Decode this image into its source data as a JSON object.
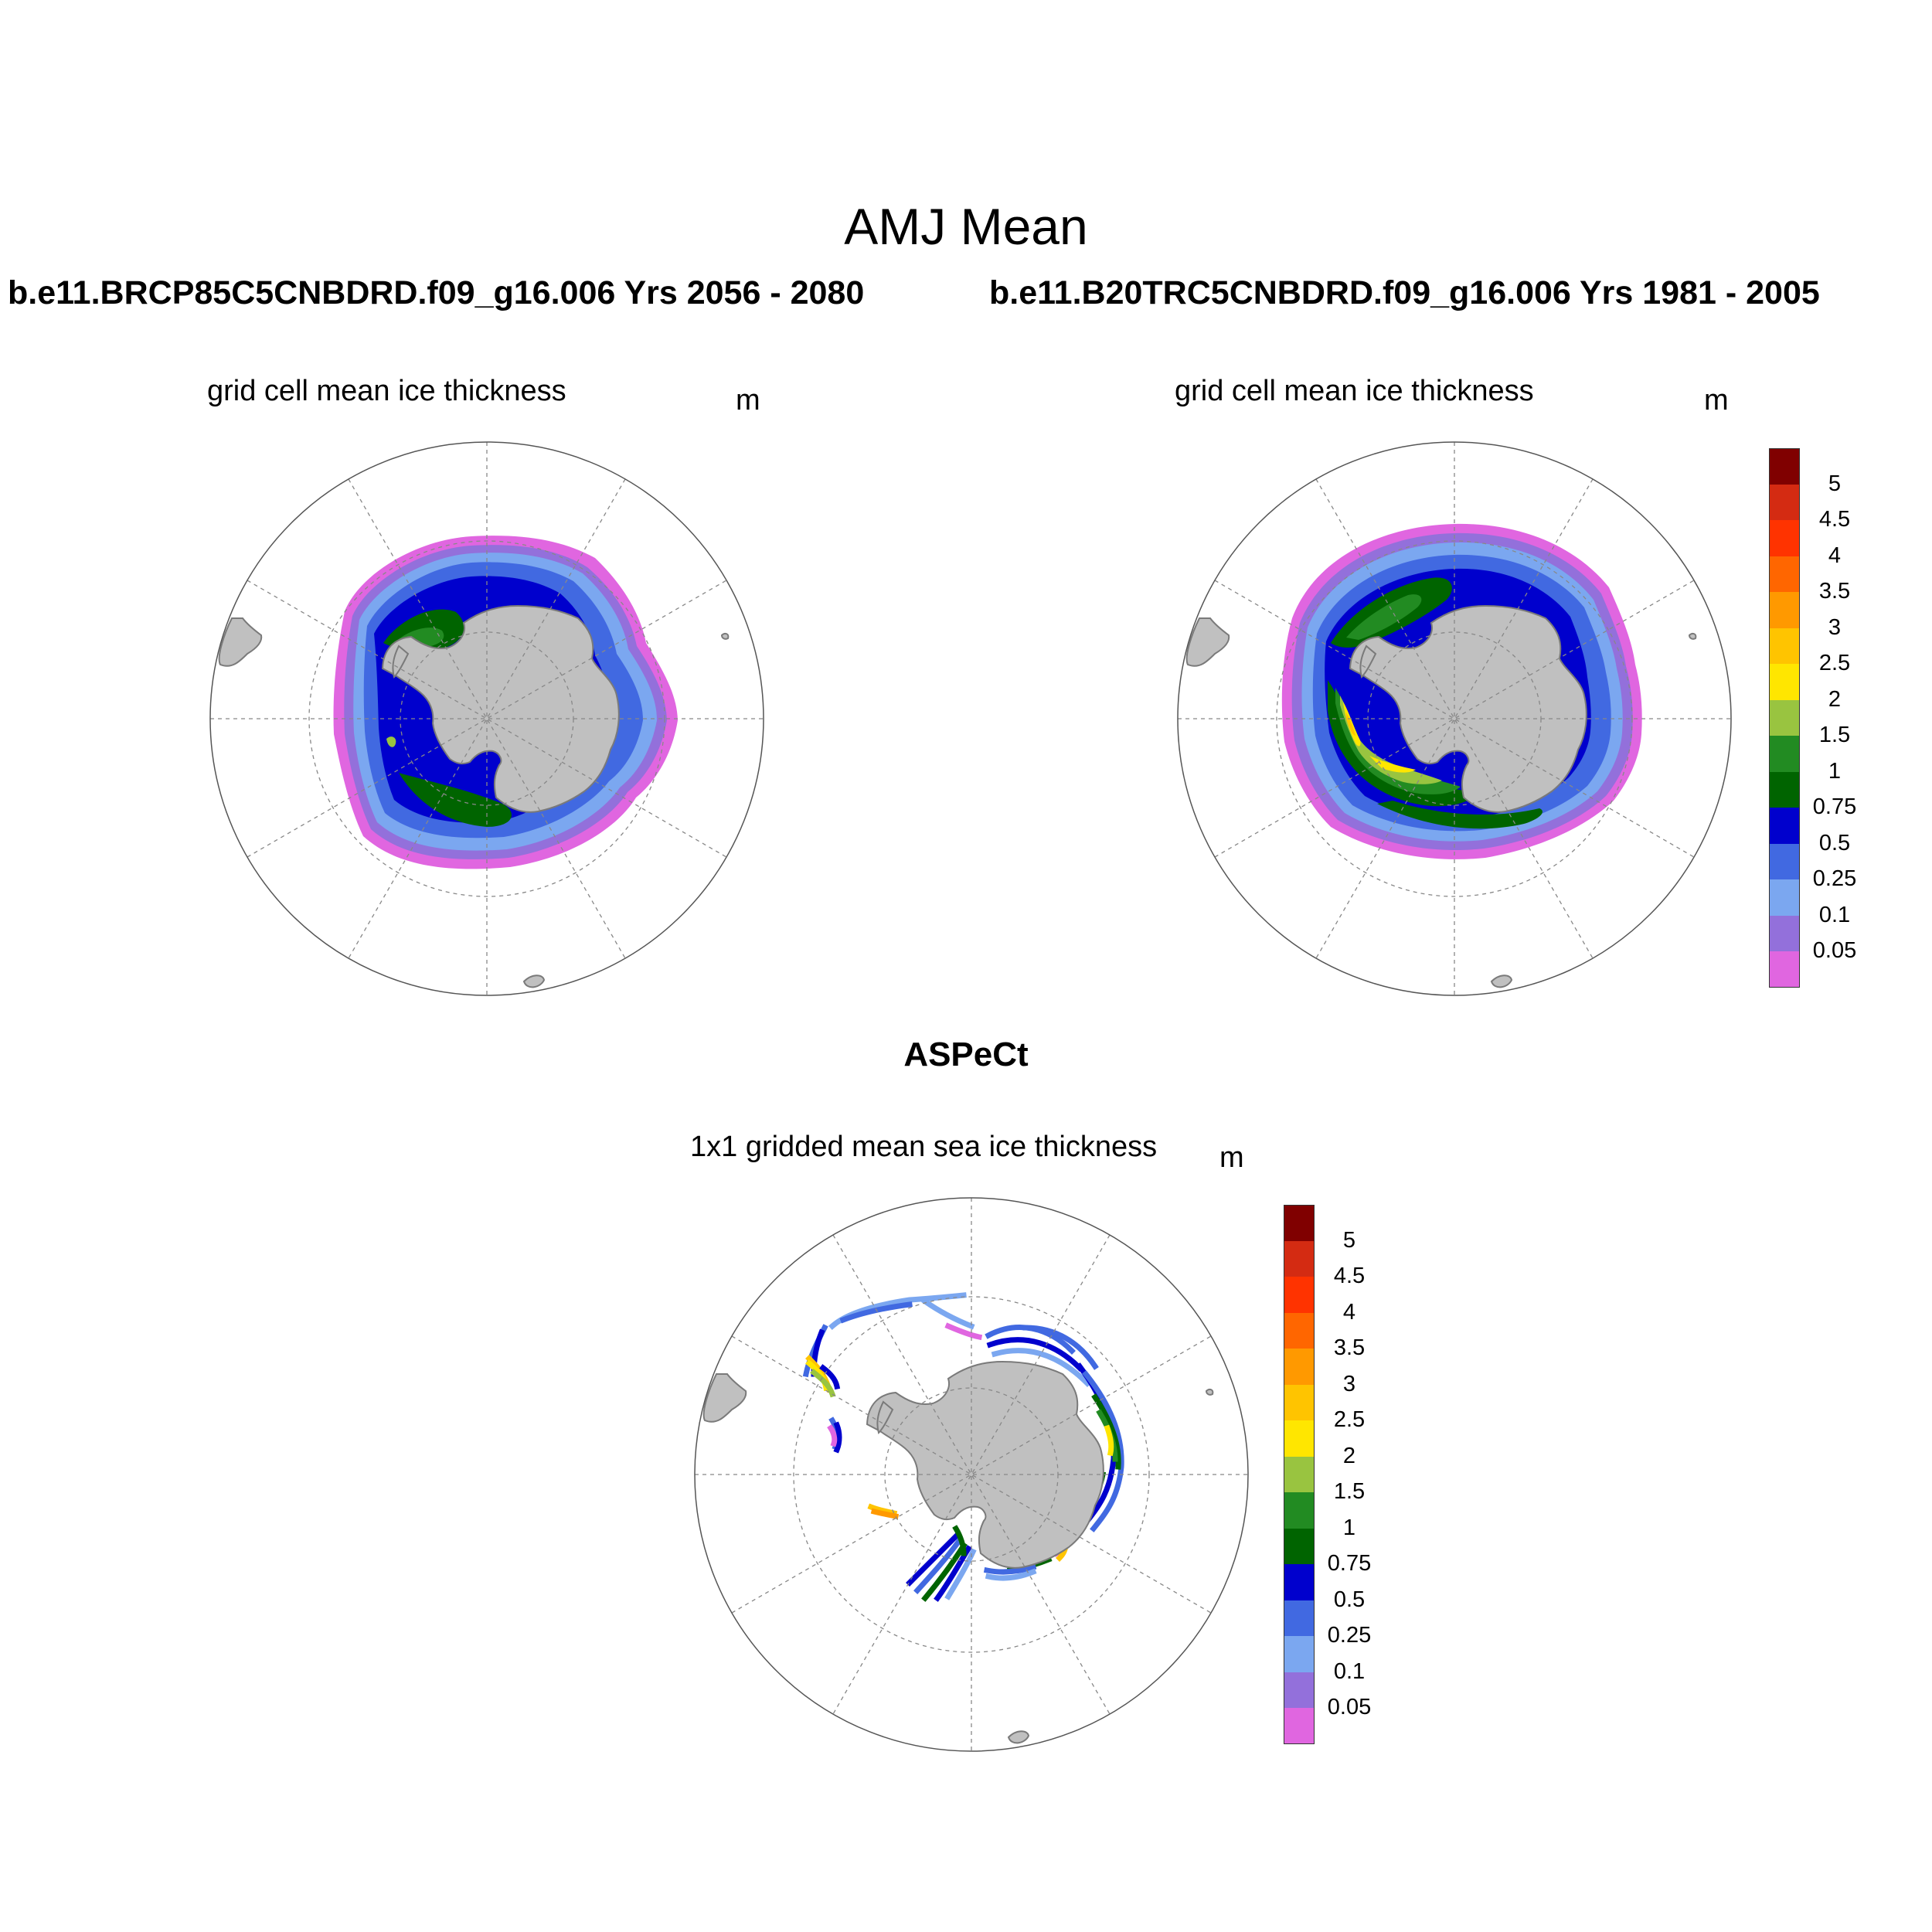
{
  "title": "AMJ Mean",
  "case_left": "b.e11.BRCP85C5CNBDRD.f09_g16.006  Yrs 2056 - 2080",
  "case_right": "b.e11.B20TRC5CNBDRD.f09_g16.006  Yrs 1981 - 2005",
  "obs_title": "ASPeCt",
  "panels": [
    {
      "id": "left",
      "subtitle": "grid cell mean ice thickness",
      "units": "m"
    },
    {
      "id": "right",
      "subtitle": "grid cell mean ice thickness",
      "units": "m"
    },
    {
      "id": "bottom",
      "subtitle": "1x1 gridded mean sea ice thickness",
      "units": "m"
    }
  ],
  "colorbar": {
    "labels": [
      "5",
      "4.5",
      "4",
      "3.5",
      "3",
      "2.5",
      "2",
      "1.5",
      "1",
      "0.75",
      "0.5",
      "0.25",
      "0.1",
      "0.05"
    ],
    "colors_top_to_bottom": [
      "#800000",
      "#d42b12",
      "#ff3300",
      "#ff6600",
      "#ff9900",
      "#ffc400",
      "#ffe600",
      "#99c440",
      "#228b22",
      "#006400",
      "#0000cd",
      "#4169e1",
      "#7ba7f0",
      "#9370db",
      "#e066e0"
    ]
  },
  "colors": {
    "land": "#c0c0c0",
    "coast": "#7a7a7a",
    "grid": "#888888",
    "background": "#ffffff"
  }
}
